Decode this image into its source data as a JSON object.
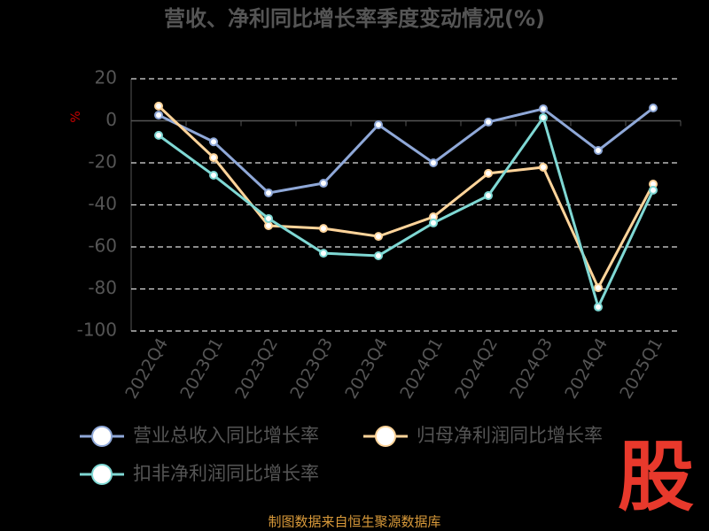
{
  "chart_data": {
    "type": "line",
    "title": "营收、净利同比增长率季度变动情况(%)",
    "y_label": "%",
    "categories": [
      "2022Q4",
      "2023Q1",
      "2023Q2",
      "2023Q3",
      "2023Q4",
      "2024Q1",
      "2024Q2",
      "2024Q3",
      "2024Q4",
      "2025Q1"
    ],
    "series": [
      {
        "name": "营业总收入同比增长率",
        "color": "#8fa8d8",
        "values": [
          2.7,
          -10,
          -34.3,
          -29.7,
          -1.9,
          -20,
          -0.6,
          5.7,
          -14.1,
          6.1
        ]
      },
      {
        "name": "归母净利润同比增长率",
        "color": "#ffd49a",
        "values": [
          7,
          -17.5,
          -49.9,
          -51.2,
          -55,
          -45.7,
          -25,
          -22.1,
          -79.4,
          -30.1
        ]
      },
      {
        "name": "扣非净利润同比增长率",
        "color": "#7fd8d4",
        "values": [
          -6.9,
          -25.9,
          -46.5,
          -63,
          -64.2,
          -48.6,
          -35.6,
          1.5,
          -88.6,
          -33
        ]
      }
    ],
    "ylim": [
      -100,
      20
    ],
    "yticks": [
      20,
      0,
      -20,
      -40,
      -60,
      -80,
      -100
    ],
    "grid": true,
    "watermark": "股",
    "source": "制图数据来自恒生聚源数据库"
  }
}
